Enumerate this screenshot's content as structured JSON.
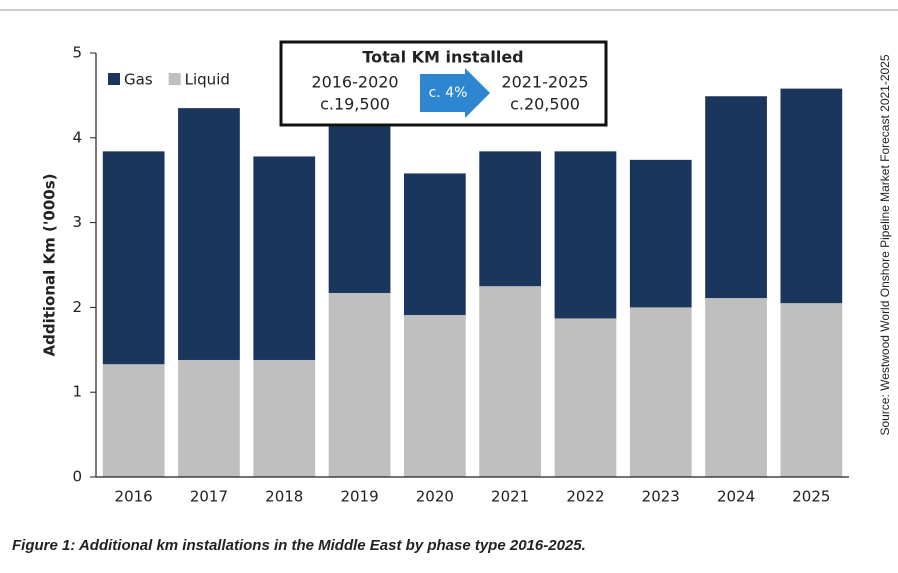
{
  "chart_data": {
    "type": "stacked_bar",
    "y_label": "Additional Km ('000s)",
    "categories": [
      "2016",
      "2017",
      "2018",
      "2019",
      "2020",
      "2021",
      "2022",
      "2023",
      "2024",
      "2025"
    ],
    "series": [
      {
        "name": "Gas",
        "color": "#1b365d",
        "values": [
          2.51,
          2.97,
          2.4,
          2.03,
          1.67,
          1.59,
          1.97,
          1.74,
          2.38,
          2.53
        ]
      },
      {
        "name": "Liquid",
        "color": "#bfbfbf",
        "values": [
          1.33,
          1.38,
          1.38,
          2.17,
          1.91,
          2.25,
          1.87,
          2.0,
          2.11,
          2.05
        ]
      }
    ],
    "ylim": [
      0,
      5
    ],
    "yticks": [
      0,
      1,
      2,
      3,
      4,
      5
    ],
    "legend": "upper left",
    "annotation": {
      "title": "Total KM installed",
      "left_period": "2016-2020",
      "left_value": "c.19,500",
      "change": "c. 4%",
      "right_period": "2021-2025",
      "right_value": "c.20,500"
    },
    "source": "Source: Westwood World Onshore Pipeline Market Forecast 2021-2025",
    "caption": "Figure 1: Additional km installations in the Middle East by phase type 2016-2025."
  }
}
